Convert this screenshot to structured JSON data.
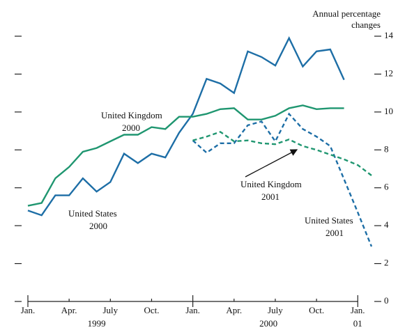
{
  "chart_data": {
    "type": "line",
    "y_axis_label": [
      "Annual percentage",
      "changes"
    ],
    "categories": [
      "Jan.",
      null,
      null,
      "Apr.",
      null,
      null,
      "July",
      null,
      null,
      "Oct.",
      null,
      null,
      "Jan.",
      null,
      null,
      "Apr.",
      null,
      null,
      "July",
      null,
      null,
      "Oct.",
      null,
      null,
      "Jan.",
      null
    ],
    "year_labels": [
      "1999",
      "2000",
      "01"
    ],
    "ylim": [
      0,
      14
    ],
    "yticks": [
      0,
      2,
      4,
      6,
      8,
      10,
      12,
      14
    ],
    "series": [
      {
        "color": "#1d6ea6",
        "dashed": false,
        "values": [
          4.8,
          4.55,
          5.6,
          5.6,
          6.5,
          5.8,
          6.3,
          7.8,
          7.3,
          7.8,
          7.6,
          8.9,
          9.9,
          11.75,
          11.5,
          11.0,
          13.2,
          12.9,
          12.45,
          13.9,
          12.4,
          13.2,
          13.3,
          11.7,
          null,
          null
        ]
      },
      {
        "color": "#1f9670",
        "dashed": false,
        "values": [
          5.05,
          5.2,
          6.5,
          7.1,
          7.9,
          8.1,
          8.45,
          8.8,
          8.8,
          9.2,
          9.1,
          9.75,
          9.75,
          9.9,
          10.15,
          10.2,
          9.6,
          9.6,
          9.8,
          10.2,
          10.35,
          10.15,
          10.2,
          10.2,
          null,
          null
        ]
      },
      {
        "color": "#1d6ea6",
        "dashed": true,
        "values": [
          null,
          null,
          null,
          null,
          null,
          null,
          null,
          null,
          null,
          null,
          null,
          null,
          8.5,
          7.85,
          8.35,
          8.35,
          9.3,
          9.5,
          8.45,
          9.9,
          9.1,
          8.7,
          8.2,
          6.45,
          4.7,
          2.9
        ]
      },
      {
        "color": "#1f9670",
        "dashed": true,
        "values": [
          null,
          null,
          null,
          null,
          null,
          null,
          null,
          null,
          null,
          null,
          null,
          null,
          8.5,
          8.7,
          8.95,
          8.45,
          8.5,
          8.35,
          8.3,
          8.55,
          8.2,
          8.0,
          7.75,
          7.5,
          7.2,
          6.65
        ]
      }
    ],
    "annotations": [
      {
        "text": [
          "United Kingdom",
          "2000"
        ]
      },
      {
        "text": [
          "United States",
          "2000"
        ]
      },
      {
        "text": [
          "United Kingdom",
          "2001"
        ]
      },
      {
        "text": [
          "United States",
          "2001"
        ]
      }
    ]
  }
}
